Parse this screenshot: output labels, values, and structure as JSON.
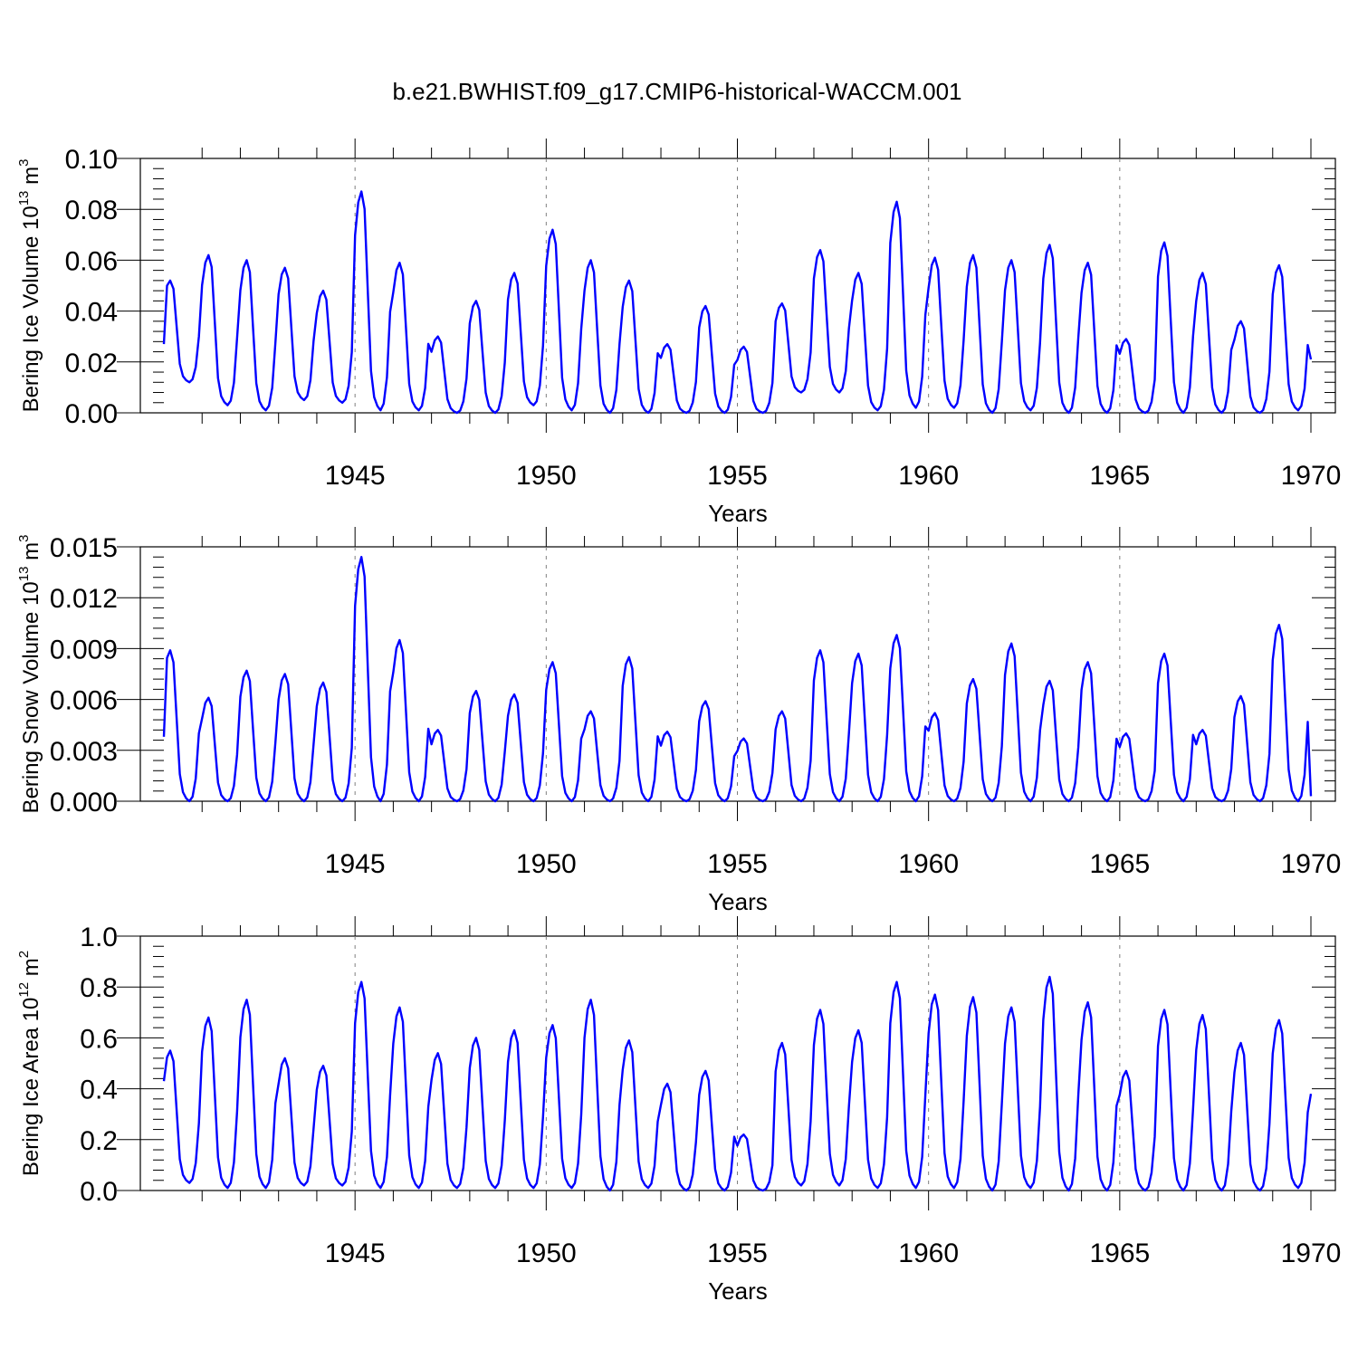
{
  "title": "b.e21.BWHIST.f09_g17.CMIP6-historical-WACCM.001",
  "colors": {
    "series": "#0000ff",
    "grid": "#808080",
    "axis": "#000000"
  },
  "chart_data": [
    {
      "type": "line",
      "panel": "ice-volume",
      "xlabel": "Years",
      "ylabel": {
        "main": "Bering Ice Volume 10",
        "sup": "13",
        "unit": " m",
        "unit_sup": "3"
      },
      "xlim": [
        1940,
        1970
      ],
      "ylim": [
        0,
        0.1
      ],
      "yticks": [
        "0.00",
        "0.02",
        "0.04",
        "0.06",
        "0.08",
        "0.10"
      ],
      "xticks": [
        "1945",
        "1950",
        "1955",
        "1960",
        "1965",
        "1970"
      ],
      "grid": "vertical dashed at 5-year ticks",
      "start_year": 1940,
      "monthly_peak_pattern": "Annual cycle, monthly values",
      "annual_peaks": [
        0.052,
        0.062,
        0.06,
        0.057,
        0.048,
        0.087,
        0.059,
        0.03,
        0.044,
        0.055,
        0.072,
        0.06,
        0.052,
        0.027,
        0.042,
        0.026,
        0.043,
        0.064,
        0.055,
        0.083,
        0.061,
        0.062,
        0.06,
        0.066,
        0.059,
        0.029,
        0.067,
        0.055,
        0.036,
        0.058
      ],
      "annual_mins": [
        0.012,
        0.003,
        0.001,
        0.005,
        0.004,
        0.001,
        0.001,
        0.0,
        0.0,
        0.003,
        0.001,
        0.0,
        0.0,
        0.0,
        0.0,
        0.0,
        0.008,
        0.008,
        0.001,
        0.002,
        0.002,
        0.0,
        0.001,
        0.0,
        0.0,
        0.0,
        0.0,
        0.0,
        0.0,
        0.001
      ],
      "start_value": 0.027,
      "end_value": 0.021
    },
    {
      "type": "line",
      "panel": "snow-volume",
      "xlabel": "Years",
      "ylabel": {
        "main": "Bering Snow Volume 10",
        "sup": "13",
        "unit": " m",
        "unit_sup": "3"
      },
      "xlim": [
        1940,
        1970
      ],
      "ylim": [
        0,
        0.015
      ],
      "yticks": [
        "0.000",
        "0.003",
        "0.006",
        "0.009",
        "0.012",
        "0.015"
      ],
      "xticks": [
        "1945",
        "1950",
        "1955",
        "1960",
        "1965",
        "1970"
      ],
      "grid": "vertical dashed at 5-year ticks",
      "start_year": 1940,
      "annual_peaks": [
        0.0089,
        0.0061,
        0.0077,
        0.0075,
        0.007,
        0.0144,
        0.0095,
        0.0042,
        0.0065,
        0.0063,
        0.0082,
        0.0053,
        0.0085,
        0.0041,
        0.0059,
        0.0037,
        0.0053,
        0.0089,
        0.0087,
        0.0098,
        0.0052,
        0.0072,
        0.0093,
        0.0071,
        0.0082,
        0.004,
        0.0087,
        0.0042,
        0.0062,
        0.0104
      ],
      "annual_mins": [
        0.0,
        0.0,
        0.0,
        0.0,
        0.0,
        0.0,
        0.0,
        0.0,
        0.0,
        0.0,
        0.0,
        0.0,
        0.0,
        0.0,
        0.0,
        0.0,
        0.0,
        0.0,
        0.0,
        0.0,
        0.0,
        0.0,
        0.0,
        0.0,
        0.0,
        0.0,
        0.0,
        0.0,
        0.0,
        0.0
      ],
      "start_value": 0.0038,
      "end_value": 0.0003
    },
    {
      "type": "line",
      "panel": "ice-area",
      "xlabel": "Years",
      "ylabel": {
        "main": "Bering Ice Area 10",
        "sup": "12",
        "unit": " m",
        "unit_sup": "2"
      },
      "xlim": [
        1940,
        1970
      ],
      "ylim": [
        0,
        1.0
      ],
      "yticks": [
        "0.0",
        "0.2",
        "0.4",
        "0.6",
        "0.8",
        "1.0"
      ],
      "xticks": [
        "1945",
        "1950",
        "1955",
        "1960",
        "1965",
        "1970"
      ],
      "grid": "vertical dashed at 5-year ticks",
      "start_year": 1940,
      "annual_peaks": [
        0.55,
        0.68,
        0.75,
        0.52,
        0.49,
        0.82,
        0.72,
        0.54,
        0.6,
        0.63,
        0.65,
        0.75,
        0.59,
        0.42,
        0.47,
        0.22,
        0.58,
        0.71,
        0.63,
        0.82,
        0.77,
        0.76,
        0.72,
        0.84,
        0.74,
        0.47,
        0.71,
        0.69,
        0.58,
        0.67
      ],
      "annual_mins": [
        0.03,
        0.01,
        0.01,
        0.02,
        0.02,
        0.01,
        0.01,
        0.01,
        0.01,
        0.01,
        0.01,
        0.0,
        0.01,
        0.0,
        0.0,
        0.0,
        0.02,
        0.02,
        0.01,
        0.01,
        0.01,
        0.0,
        0.01,
        0.0,
        0.0,
        0.0,
        0.0,
        0.0,
        0.0,
        0.01
      ],
      "start_value": 0.43,
      "end_value": 0.38
    }
  ]
}
